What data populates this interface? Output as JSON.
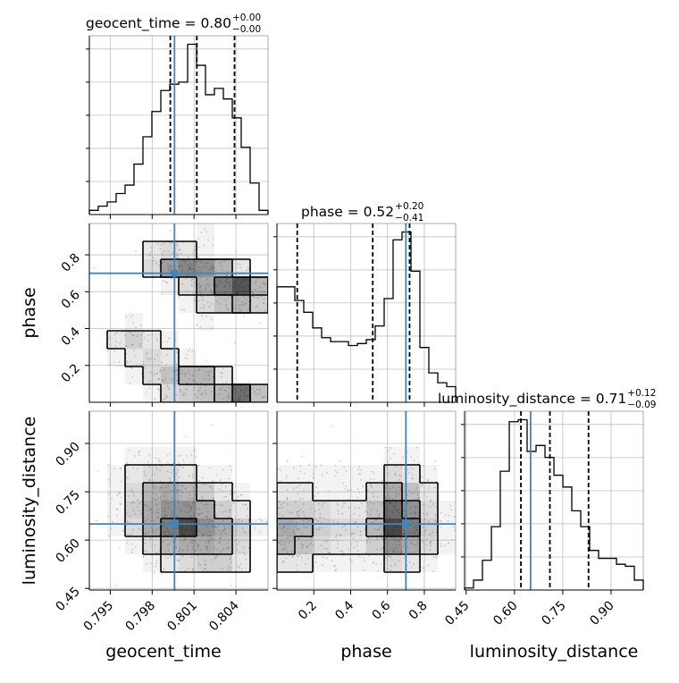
{
  "chart_data": {
    "type": "corner",
    "parameters": [
      "geocent_time",
      "phase",
      "luminosity_distance"
    ],
    "colors": {
      "truth": "#4682b4",
      "hist": "#000000",
      "grid": "#c0c0c0",
      "scatter": "#9e9e9e"
    },
    "titles": [
      {
        "name": "geocent_time",
        "value": "0.80",
        "plus": "+0.00",
        "minus": "−0.00"
      },
      {
        "name": "phase",
        "value": "0.52",
        "plus": "+0.20",
        "minus": "−0.41"
      },
      {
        "name": "luminosity_distance",
        "value": "0.71",
        "plus": "+0.12",
        "minus": "−0.09"
      }
    ],
    "truths": {
      "geocent_time": 0.7996,
      "phase": 0.7,
      "luminosity_distance": 0.65
    },
    "quantiles": {
      "geocent_time": [
        0.7993,
        0.8012,
        0.8039
      ],
      "phase": [
        0.11,
        0.52,
        0.72
      ],
      "luminosity_distance": [
        0.62,
        0.71,
        0.83
      ]
    },
    "axes": {
      "geocent_time": {
        "range": [
          0.7935,
          0.8063
        ],
        "ticks": [
          0.795,
          0.798,
          0.801,
          0.804
        ],
        "tick_labels": [
          "0.795",
          "0.798",
          "0.801",
          "0.804"
        ]
      },
      "phase": {
        "range": [
          0.0,
          0.97
        ],
        "ticks": [
          0.2,
          0.4,
          0.6,
          0.8
        ],
        "tick_labels": [
          "0.2",
          "0.4",
          "0.6",
          "0.8"
        ]
      },
      "luminosity_distance": {
        "range": [
          0.445,
          1.0
        ],
        "ticks": [
          0.45,
          0.6,
          0.75,
          0.9
        ],
        "tick_labels": [
          "0.45",
          "0.60",
          "0.75",
          "0.90"
        ]
      }
    },
    "hist_geocent_time": {
      "edges": [
        0.7935,
        0.79414,
        0.79478,
        0.79542,
        0.79606,
        0.7967,
        0.79734,
        0.79798,
        0.79862,
        0.79926,
        0.7999,
        0.80054,
        0.80118,
        0.80182,
        0.80246,
        0.8031,
        0.80374,
        0.80438,
        0.80502,
        0.80566,
        0.8063
      ],
      "counts": [
        2,
        4,
        6,
        10,
        14,
        24,
        37,
        49,
        59,
        62,
        63,
        81,
        71,
        57,
        60,
        55,
        46,
        32,
        15,
        2
      ]
    },
    "hist_phase": {
      "edges": [
        0.0,
        0.0485,
        0.097,
        0.1455,
        0.194,
        0.2425,
        0.291,
        0.3395,
        0.388,
        0.4365,
        0.485,
        0.5335,
        0.582,
        0.6305,
        0.679,
        0.7275,
        0.776,
        0.8245,
        0.873,
        0.9215,
        0.97
      ],
      "counts": [
        59,
        59,
        52,
        46,
        38,
        33,
        31,
        31,
        29,
        30,
        32,
        39,
        53,
        83,
        87,
        67,
        28,
        15,
        10,
        8
      ]
    },
    "hist_luminosity_distance": {
      "edges": [
        0.445,
        0.4728,
        0.5005,
        0.5283,
        0.556,
        0.5838,
        0.6115,
        0.6393,
        0.667,
        0.6948,
        0.7225,
        0.7503,
        0.778,
        0.8058,
        0.8335,
        0.8613,
        0.889,
        0.9168,
        0.9445,
        0.9723,
        1.0
      ],
      "counts": [
        1,
        5,
        15,
        32,
        60,
        85,
        86,
        70,
        73,
        67,
        58,
        52,
        40,
        32,
        20,
        16,
        16,
        13,
        12,
        5
      ]
    },
    "density_geocent_time_phase": {
      "x_edges": [
        0.7935,
        0.79478,
        0.79606,
        0.79734,
        0.79862,
        0.7999,
        0.80118,
        0.80246,
        0.80374,
        0.80502,
        0.8063
      ],
      "y_edges": [
        0.0,
        0.097,
        0.194,
        0.291,
        0.388,
        0.485,
        0.582,
        0.679,
        0.776,
        0.873,
        0.97
      ],
      "values": [
        [
          0.0,
          0.0,
          0.0,
          0.05,
          0.15,
          0.2,
          0.25,
          0.3,
          0.6,
          0.25
        ],
        [
          0.0,
          0.0,
          0.05,
          0.15,
          0.25,
          0.3,
          0.3,
          0.1,
          0.0,
          0.0
        ],
        [
          0.0,
          0.05,
          0.1,
          0.15,
          0.1,
          0.05,
          0.0,
          0.0,
          0.0,
          0.0
        ],
        [
          0.0,
          0.1,
          0.2,
          0.1,
          0.05,
          0.0,
          0.0,
          0.0,
          0.0,
          0.0
        ],
        [
          0.0,
          0.0,
          0.05,
          0.0,
          0.0,
          0.0,
          0.05,
          0.0,
          0.0,
          0.0
        ],
        [
          0.0,
          0.0,
          0.0,
          0.0,
          0.0,
          0.05,
          0.15,
          0.25,
          0.3,
          0.2
        ],
        [
          0.0,
          0.0,
          0.0,
          0.0,
          0.05,
          0.15,
          0.35,
          0.55,
          0.7,
          0.3
        ],
        [
          0.0,
          0.0,
          0.0,
          0.15,
          0.4,
          0.5,
          0.45,
          0.3,
          0.1,
          0.0
        ],
        [
          0.0,
          0.0,
          0.0,
          0.1,
          0.15,
          0.1,
          0.05,
          0.0,
          0.0,
          0.0
        ],
        [
          0.0,
          0.0,
          0.0,
          0.0,
          0.0,
          0.0,
          0.05,
          0.0,
          0.0,
          0.0
        ]
      ]
    },
    "density_geocent_time_luminosity_distance": {
      "x_edges": [
        0.7935,
        0.79478,
        0.79606,
        0.79734,
        0.79862,
        0.7999,
        0.80118,
        0.80246,
        0.80374,
        0.80502,
        0.8063
      ],
      "y_edges": [
        0.445,
        0.5005,
        0.556,
        0.6115,
        0.667,
        0.7225,
        0.778,
        0.8335,
        0.889,
        0.9445,
        1.0
      ],
      "values": [
        [
          0.0,
          0.0,
          0.0,
          0.0,
          0.0,
          0.0,
          0.0,
          0.0,
          0.0,
          0.0
        ],
        [
          0.0,
          0.0,
          0.0,
          0.05,
          0.1,
          0.15,
          0.2,
          0.2,
          0.1,
          0.0
        ],
        [
          0.0,
          0.0,
          0.05,
          0.15,
          0.3,
          0.35,
          0.35,
          0.3,
          0.15,
          0.0
        ],
        [
          0.0,
          0.05,
          0.15,
          0.35,
          0.55,
          0.75,
          0.45,
          0.35,
          0.2,
          0.05
        ],
        [
          0.0,
          0.05,
          0.2,
          0.35,
          0.45,
          0.45,
          0.35,
          0.2,
          0.1,
          0.0
        ],
        [
          0.0,
          0.05,
          0.15,
          0.3,
          0.35,
          0.3,
          0.2,
          0.1,
          0.05,
          0.0
        ],
        [
          0.0,
          0.05,
          0.1,
          0.15,
          0.15,
          0.1,
          0.05,
          0.05,
          0.0,
          0.0
        ],
        [
          0.0,
          0.0,
          0.05,
          0.05,
          0.05,
          0.05,
          0.0,
          0.0,
          0.0,
          0.0
        ],
        [
          0.0,
          0.0,
          0.0,
          0.0,
          0.0,
          0.0,
          0.0,
          0.0,
          0.0,
          0.0
        ],
        [
          0.0,
          0.0,
          0.0,
          0.0,
          0.0,
          0.0,
          0.0,
          0.0,
          0.0,
          0.0
        ]
      ]
    },
    "density_phase_luminosity_distance": {
      "x_edges": [
        0.0,
        0.097,
        0.194,
        0.291,
        0.388,
        0.485,
        0.582,
        0.679,
        0.776,
        0.873,
        0.97
      ],
      "y_edges": [
        0.445,
        0.5005,
        0.556,
        0.6115,
        0.667,
        0.7225,
        0.778,
        0.8335,
        0.889,
        0.9445,
        1.0
      ],
      "values": [
        [
          0.0,
          0.0,
          0.0,
          0.0,
          0.0,
          0.0,
          0.0,
          0.0,
          0.0,
          0.0
        ],
        [
          0.1,
          0.1,
          0.05,
          0.05,
          0.05,
          0.05,
          0.15,
          0.1,
          0.05,
          0.0
        ],
        [
          0.3,
          0.25,
          0.15,
          0.1,
          0.1,
          0.2,
          0.45,
          0.35,
          0.15,
          0.05
        ],
        [
          0.35,
          0.3,
          0.2,
          0.15,
          0.15,
          0.3,
          0.75,
          0.55,
          0.2,
          0.05
        ],
        [
          0.2,
          0.2,
          0.15,
          0.1,
          0.1,
          0.25,
          0.6,
          0.45,
          0.15,
          0.05
        ],
        [
          0.1,
          0.1,
          0.05,
          0.05,
          0.05,
          0.15,
          0.35,
          0.25,
          0.1,
          0.0
        ],
        [
          0.05,
          0.05,
          0.05,
          0.05,
          0.05,
          0.05,
          0.15,
          0.1,
          0.05,
          0.0
        ],
        [
          0.0,
          0.0,
          0.0,
          0.0,
          0.0,
          0.0,
          0.05,
          0.05,
          0.0,
          0.0
        ],
        [
          0.0,
          0.0,
          0.0,
          0.0,
          0.0,
          0.0,
          0.0,
          0.0,
          0.0,
          0.0
        ],
        [
          0.0,
          0.0,
          0.0,
          0.0,
          0.0,
          0.0,
          0.0,
          0.0,
          0.0,
          0.0
        ]
      ]
    }
  }
}
